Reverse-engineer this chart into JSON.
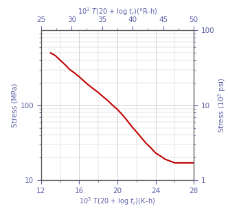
{
  "title_bottom_x": "10$^3$ $T$(20 + log $t_r$)(K–h)",
  "title_top_x": "10$^3$ $T$(20 + log $t_r$)(°R–h)",
  "title_left_y": "Stress (MPa)",
  "title_right_y": "Stress (10$^3$ psi)",
  "x_bottom_min": 12,
  "x_bottom_max": 28,
  "x_top_min": 25,
  "x_top_max": 50,
  "y_left_min": 10,
  "y_left_max": 1000,
  "y_right_min": 1,
  "y_right_max": 100,
  "curve_x": [
    13.0,
    13.5,
    14.0,
    14.5,
    15.0,
    15.5,
    16.0,
    16.5,
    17.0,
    17.5,
    18.0,
    18.5,
    19.0,
    19.5,
    20.0,
    20.5,
    21.0,
    21.5,
    22.0,
    22.5,
    23.0,
    23.5,
    24.0,
    24.5,
    25.0,
    25.5,
    26.0,
    26.5,
    27.0,
    27.5,
    28.0
  ],
  "curve_y": [
    500,
    460,
    400,
    350,
    300,
    270,
    240,
    210,
    185,
    165,
    148,
    130,
    115,
    100,
    88,
    75,
    63,
    52,
    44,
    37,
    31,
    27,
    23,
    21,
    19,
    18,
    17,
    17,
    17,
    17,
    17
  ],
  "curve_color": "#c00000",
  "axis_label_color": "#5b5ea6",
  "tick_label_color": "#5b5ea6",
  "background_color": "#ffffff",
  "grid_color": "#cccccc",
  "spine_color": "#555555"
}
